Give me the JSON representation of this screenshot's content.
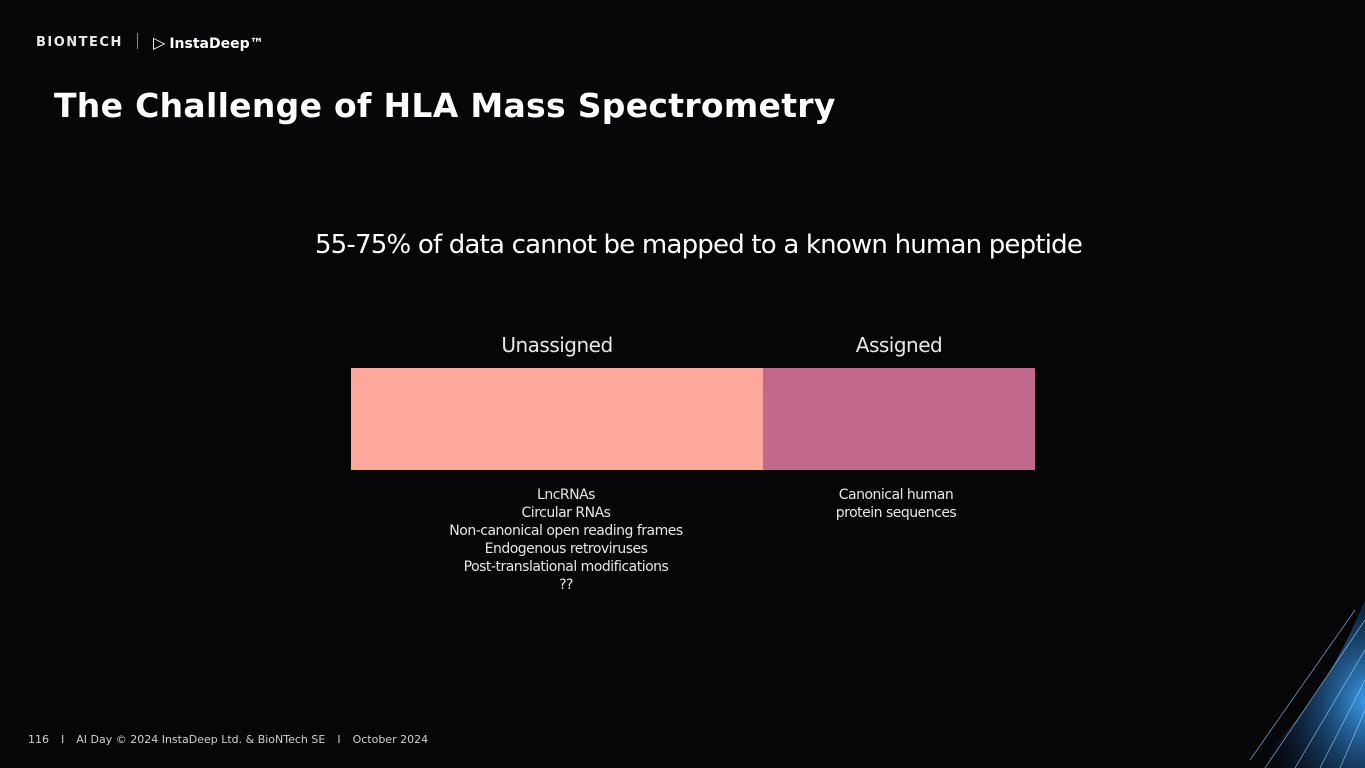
{
  "header": {
    "logo_left": "BIONTECH",
    "logo_right": "InstaDeep™",
    "title": "The Challenge of HLA Mass Spectrometry"
  },
  "headline": "55-75% of data cannot be mapped to a known human peptide",
  "segments": [
    {
      "label": "Unassigned",
      "items": [
        "LncRNAs",
        "Circular RNAs",
        "Non-canonical open reading frames",
        "Endogenous retroviruses",
        "Post-translational modifications",
        "??"
      ]
    },
    {
      "label": "Assigned",
      "items": [
        "Canonical human",
        "protein sequences"
      ]
    }
  ],
  "footer": {
    "page": "116",
    "separator": "I",
    "event": "AI Day © 2024 InstaDeep Ltd. & BioNTech SE",
    "date": "October 2024"
  }
}
